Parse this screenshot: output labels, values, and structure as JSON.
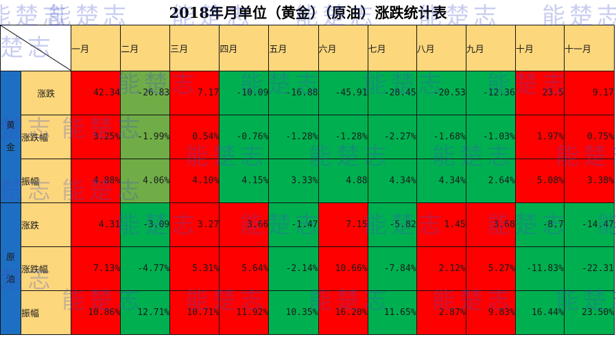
{
  "title": "2018年月单位（黄金）（原油）涨跌统计表",
  "watermark": "能楚志",
  "months": [
    "一月",
    "二月",
    "三月",
    "四月",
    "五月",
    "六月",
    "七月",
    "八月",
    "九月",
    "十月",
    "十一月"
  ],
  "groups": [
    {
      "name": "黄金",
      "rows": [
        {
          "label": "涨跌",
          "values": [
            "42.34",
            "-26.83",
            "7.17",
            "-10.09",
            "-16.88",
            "-45.91",
            "-28.45",
            "-20.53",
            "-12.36",
            "23.5",
            "9.17"
          ],
          "colors": [
            "red",
            "olive",
            "red",
            "green",
            "green",
            "green",
            "green",
            "green",
            "green",
            "red",
            "red"
          ]
        },
        {
          "label": "涨跌幅",
          "values": [
            "3.25%",
            "-1.99%",
            "0.54%",
            "-0.76%",
            "-1.28%",
            "-1.28%",
            "-2.27%",
            "-1.68%",
            "-1.03%",
            "1.97%",
            "0.75%"
          ],
          "colors": [
            "red",
            "olive",
            "red",
            "green",
            "green",
            "green",
            "green",
            "green",
            "green",
            "red",
            "red"
          ]
        },
        {
          "label": "振幅",
          "values": [
            "4.88%",
            "4.06%",
            "4.10%",
            "4.15%",
            "3.33%",
            "4.88",
            "4.34%",
            "4.34%",
            "2.64%",
            "5.08%",
            "3.38%"
          ],
          "colors": [
            "red",
            "olive",
            "red",
            "green",
            "green",
            "green",
            "green",
            "green",
            "green",
            "red",
            "red"
          ]
        }
      ]
    },
    {
      "name": "原油",
      "rows": [
        {
          "label": "涨跌",
          "values": [
            "4.31",
            "-3.09",
            "3.27",
            "3.66",
            "-1.47",
            "7.15",
            "-5.82",
            "1.45",
            "3.68",
            "-8.7",
            "-14.47"
          ],
          "colors": [
            "red",
            "green",
            "red",
            "red",
            "green",
            "red",
            "green",
            "red",
            "red",
            "green",
            "green"
          ]
        },
        {
          "label": "涨跌幅",
          "values": [
            "7.13%",
            "-4.77%",
            "5.31%",
            "5.64%",
            "-2.14%",
            "10.66%",
            "-7.84%",
            "2.12%",
            "5.27%",
            "-11.83%",
            "-22.31"
          ],
          "colors": [
            "red",
            "green",
            "red",
            "red",
            "green",
            "red",
            "green",
            "red",
            "red",
            "green",
            "green"
          ]
        },
        {
          "label": "振幅",
          "values": [
            "10.86%",
            "12.71%",
            "10.71%",
            "11.92%",
            "10.35%",
            "16.20%",
            "11.65%",
            "2.87%",
            "9.83%",
            "16.44%",
            "23.50%"
          ],
          "colors": [
            "red",
            "green",
            "red",
            "red",
            "green",
            "red",
            "green",
            "red",
            "red",
            "green",
            "green"
          ]
        }
      ]
    }
  ]
}
